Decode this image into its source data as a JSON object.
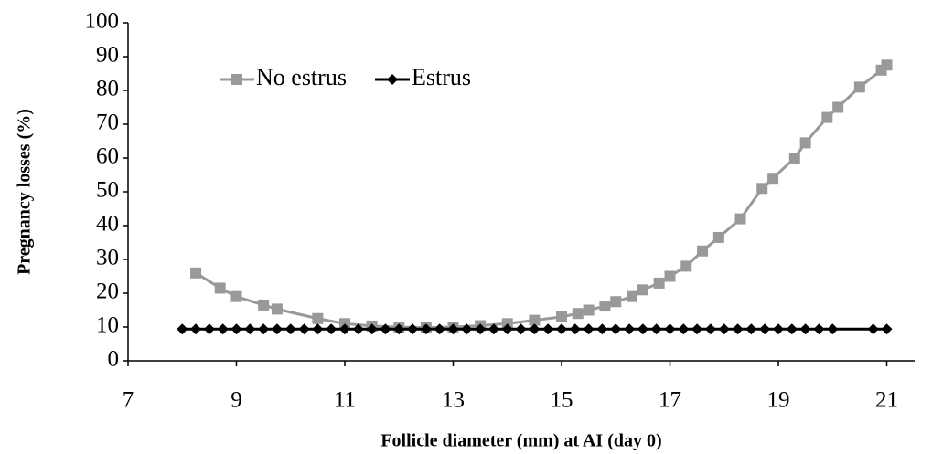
{
  "chart_data": {
    "type": "line",
    "xlabel": "Follicle diameter (mm) at AI (day 0)",
    "ylabel": "Pregnancy losses (%)",
    "xlim": [
      7,
      21.5
    ],
    "xticks": [
      7,
      9,
      11,
      13,
      15,
      17,
      19,
      21
    ],
    "ylim": [
      0,
      100
    ],
    "yticks": [
      0,
      10,
      20,
      30,
      40,
      50,
      60,
      70,
      80,
      90,
      100
    ],
    "legend": "top-left",
    "series": [
      {
        "name": "No estrus",
        "color": "#999999",
        "marker": "square",
        "x": [
          8.25,
          8.7,
          9,
          9.5,
          9.75,
          10.5,
          11,
          11.5,
          12,
          12.5,
          13,
          13.5,
          14,
          14.5,
          15,
          15.3,
          15.5,
          15.8,
          16,
          16.3,
          16.5,
          16.8,
          17,
          17.3,
          17.6,
          17.9,
          18.3,
          18.7,
          18.9,
          19.3,
          19.5,
          19.9,
          20.1,
          20.5,
          20.9,
          21
        ],
        "values": [
          26,
          21.5,
          19,
          16.5,
          15.3,
          12.5,
          11,
          10.3,
          10,
          9.8,
          10,
          10.4,
          11,
          12,
          13,
          14,
          15,
          16.2,
          17.5,
          19,
          21,
          23,
          25,
          28,
          32.5,
          36.5,
          42,
          51,
          54,
          60,
          64.5,
          72,
          75,
          81,
          86,
          87.5
        ]
      },
      {
        "name": "Estrus",
        "color": "#000000",
        "marker": "diamond",
        "x": [
          8,
          8.25,
          8.5,
          8.75,
          9,
          9.25,
          9.5,
          9.75,
          10,
          10.25,
          10.5,
          10.75,
          11,
          11.25,
          11.5,
          11.75,
          12,
          12.25,
          12.5,
          12.75,
          13,
          13.25,
          13.5,
          13.75,
          14,
          14.25,
          14.5,
          14.75,
          15,
          15.25,
          15.5,
          15.75,
          16,
          16.25,
          16.5,
          16.75,
          17,
          17.25,
          17.5,
          17.75,
          18,
          18.25,
          18.5,
          18.75,
          19,
          19.25,
          19.5,
          19.75,
          20,
          20.75,
          21
        ],
        "values": [
          9.4,
          9.4,
          9.4,
          9.4,
          9.4,
          9.4,
          9.4,
          9.4,
          9.4,
          9.4,
          9.4,
          9.4,
          9.4,
          9.4,
          9.4,
          9.4,
          9.4,
          9.4,
          9.4,
          9.4,
          9.4,
          9.4,
          9.4,
          9.4,
          9.4,
          9.4,
          9.4,
          9.4,
          9.4,
          9.4,
          9.4,
          9.4,
          9.4,
          9.4,
          9.4,
          9.4,
          9.4,
          9.4,
          9.4,
          9.4,
          9.4,
          9.4,
          9.4,
          9.4,
          9.4,
          9.4,
          9.4,
          9.4,
          9.4,
          9.4,
          9.4
        ]
      }
    ]
  }
}
